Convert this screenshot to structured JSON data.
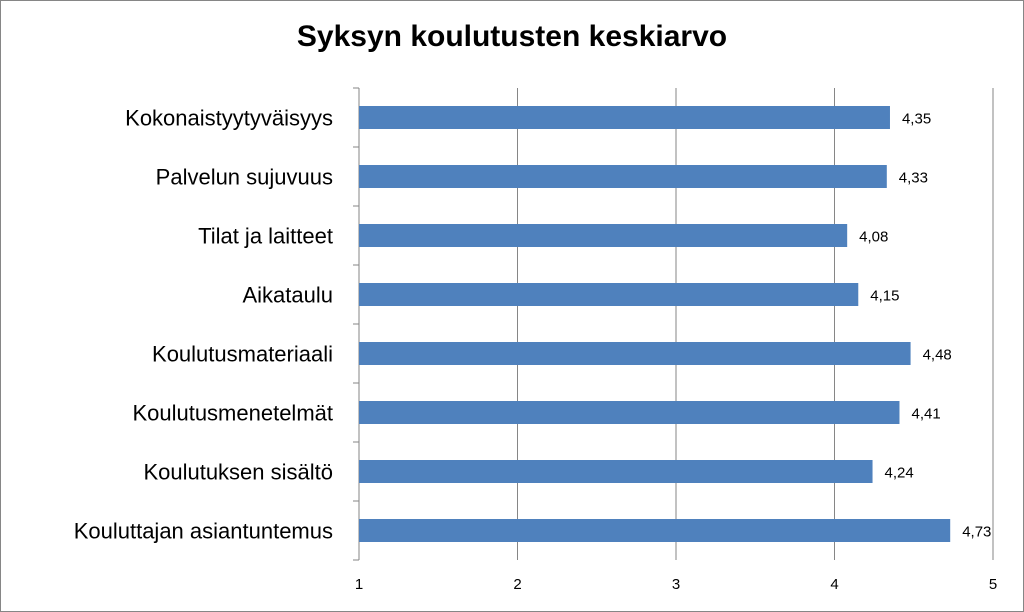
{
  "chart_data": {
    "type": "bar",
    "orientation": "horizontal",
    "title": "Syksyn koulutusten keskiarvo",
    "xlabel": "",
    "ylabel": "",
    "categories": [
      "Kokonaistyytyväisyys",
      "Palvelun sujuvuus",
      "Tilat ja laitteet",
      "Aikataulu",
      "Koulutusmateriaali",
      "Koulutusmenetelmät",
      "Koulutuksen sisältö",
      "Kouluttajan asiantuntemus"
    ],
    "values": [
      4.35,
      4.33,
      4.08,
      4.15,
      4.48,
      4.41,
      4.24,
      4.73
    ],
    "value_labels": [
      "4,35",
      "4,33",
      "4,08",
      "4,15",
      "4,48",
      "4,41",
      "4,24",
      "4,73"
    ],
    "xlim": [
      1,
      5
    ],
    "xticks": [
      "1",
      "2",
      "3",
      "4",
      "5"
    ],
    "grid": "vertical",
    "legend": "none",
    "bar_color": "#4F81BD",
    "grid_color": "#868686"
  }
}
